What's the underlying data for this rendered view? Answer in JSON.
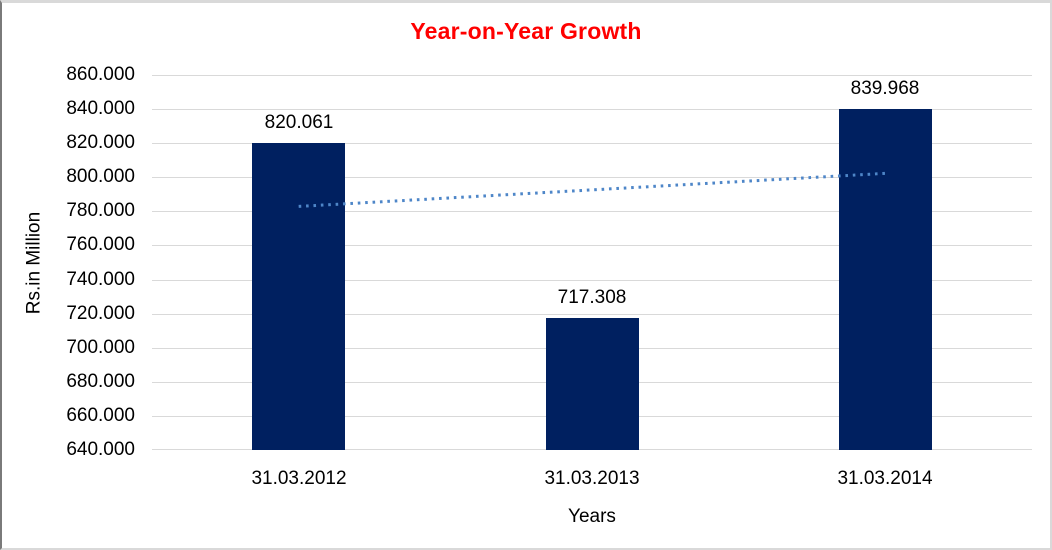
{
  "chart_data": {
    "type": "bar",
    "title": "Year-on-Year Growth",
    "title_color": "#ff0000",
    "xlabel": "Years",
    "ylabel": "Rs.in Million",
    "categories": [
      "31.03.2012",
      "31.03.2013",
      "31.03.2014"
    ],
    "values": [
      820.061,
      717.308,
      839.968
    ],
    "value_labels": [
      "820.061",
      "717.308",
      "839.968"
    ],
    "ylim": [
      640,
      860
    ],
    "yticks": [
      860,
      840,
      820,
      800,
      780,
      760,
      740,
      720,
      700,
      680,
      660,
      640
    ],
    "ytick_labels": [
      "860.000",
      "840.000",
      "820.000",
      "800.000",
      "780.000",
      "760.000",
      "740.000",
      "720.000",
      "700.000",
      "680.000",
      "660.000",
      "640.000"
    ],
    "grid": true,
    "legend": "none",
    "bar_color": "#002060",
    "gridline_color": "#d9d9d9",
    "trendline": {
      "type": "linear",
      "style": "dotted",
      "color": "#4e86c8",
      "start": {
        "category_index": 0,
        "value": 782.9
      },
      "end": {
        "category_index": 2,
        "value": 802.3
      }
    }
  }
}
